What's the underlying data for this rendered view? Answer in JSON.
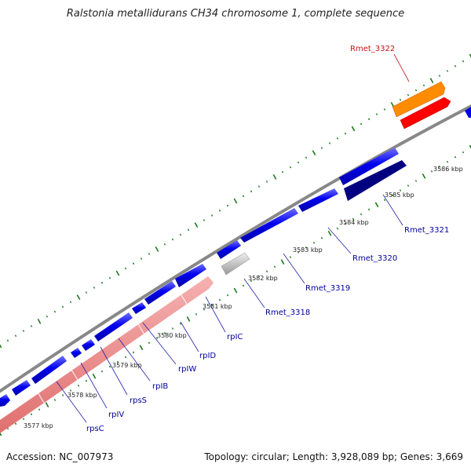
{
  "title": "Ralstonia metallidurans CH34 chromosome 1, complete sequence",
  "footer": {
    "accession": "Accession: NC_007973",
    "summary": "Topology: circular; Length: 3,928,089 bp; Genes: 3,669"
  },
  "colors": {
    "backbone": "#888888",
    "forward_gene": "#0000ee",
    "reverse_rrna": "#ee8888",
    "highlight_outer": "#ff8c00",
    "highlight_inner": "#ff0000",
    "dark_gene": "#000080",
    "grey_gene": "#bbbbbb",
    "tick": "#1a7a1a",
    "label": "#00009a",
    "highlight_label": "#cc1111"
  },
  "scale_labels": [
    "3577 kbp",
    "3578 kbp",
    "3579 kbp",
    "3580 kbp",
    "3581 kbp",
    "3582 kbp",
    "3583 kbp",
    "3584 kbp",
    "3585 kbp",
    "3586 kbp"
  ],
  "gene_labels": [
    "rpsC",
    "rpIV",
    "rpsS",
    "rpIB",
    "rpIW",
    "rpID",
    "rpIC",
    "Rmet_3318",
    "Rmet_3319",
    "Rmet_3320",
    "Rmet_3321",
    "Rmet_3322"
  ]
}
